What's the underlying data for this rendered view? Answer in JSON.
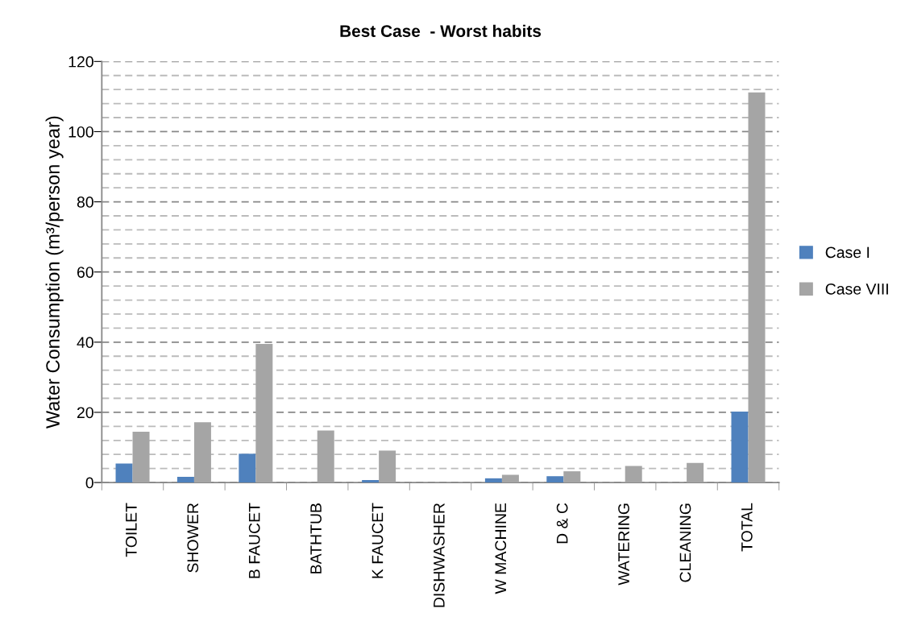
{
  "chart_data": {
    "type": "bar",
    "title": "Best Case  - Worst habits",
    "ylabel": "Water Consumption (m³/person year)",
    "categories": [
      "TOILET",
      "SHOWER",
      "B FAUCET",
      "BATHTUB",
      "K FAUCET",
      "DISHWASHER",
      "W MACHINE",
      "D & C",
      "WATERING",
      "CLEANING",
      "TOTAL"
    ],
    "series": [
      {
        "name": "Case I",
        "color": "#4f81bd",
        "values": [
          5.4,
          1.6,
          8.2,
          0,
          0.7,
          0,
          1.2,
          1.8,
          0,
          0,
          20.2
        ]
      },
      {
        "name": "Case VIII",
        "color": "#a5a5a5",
        "values": [
          14.5,
          17.2,
          39.5,
          14.8,
          9.1,
          0,
          2.2,
          3.2,
          4.7,
          5.6,
          111.2
        ]
      }
    ],
    "ylim": [
      0,
      120
    ],
    "yticks": [
      0,
      {
        "value": 4,
        "label": null
      },
      {
        "value": 8,
        "label": null
      },
      {
        "value": 12,
        "label": null
      },
      {
        "value": 16,
        "label": null
      },
      20,
      {
        "value": 24,
        "label": null
      },
      {
        "value": 28,
        "label": null
      },
      {
        "value": 32,
        "label": null
      },
      {
        "value": 36,
        "label": null
      },
      40,
      {
        "value": 44,
        "label": null
      },
      {
        "value": 48,
        "label": null
      },
      {
        "value": 52,
        "label": null
      },
      {
        "value": 56,
        "label": null
      },
      60,
      {
        "value": 64,
        "label": null
      },
      {
        "value": 68,
        "label": null
      },
      {
        "value": 72,
        "label": null
      },
      {
        "value": 76,
        "label": null
      },
      80,
      {
        "value": 84,
        "label": null
      },
      {
        "value": 88,
        "label": null
      },
      {
        "value": 92,
        "label": null
      },
      {
        "value": 96,
        "label": null
      },
      100,
      {
        "value": 104,
        "label": null
      },
      {
        "value": 108,
        "label": null
      },
      {
        "value": 112,
        "label": null
      },
      {
        "value": 116,
        "label": null
      },
      120
    ],
    "grid": "y",
    "legend": "right"
  }
}
